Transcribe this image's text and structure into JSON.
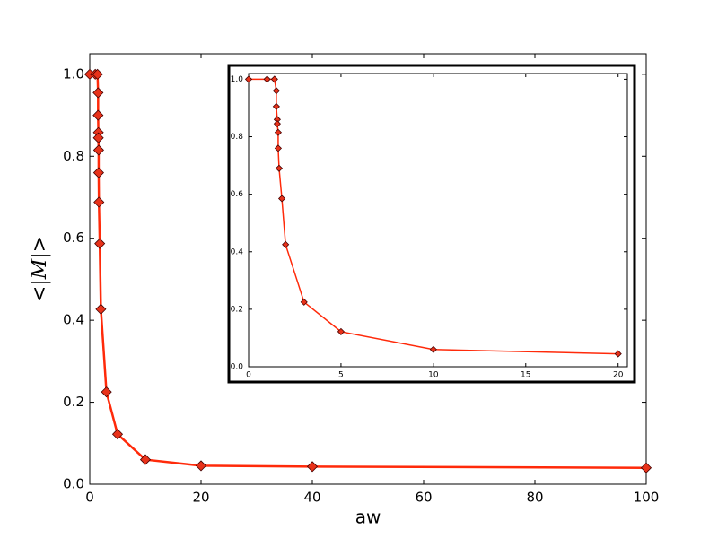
{
  "chart_data": [
    {
      "type": "line",
      "x_label": "aw",
      "y_label": "<|M|>",
      "x": [
        0,
        1,
        1.4,
        1.5,
        1.5,
        1.55,
        1.55,
        1.6,
        1.6,
        1.65,
        1.8,
        2,
        3,
        5,
        10,
        20,
        40,
        100
      ],
      "series": [
        {
          "color": "#ff2a0a",
          "marker_color": "#e8321a",
          "values": [
            1.0,
            1.0,
            1.0,
            0.955,
            0.9,
            0.858,
            0.845,
            0.815,
            0.76,
            0.688,
            0.587,
            0.427,
            0.225,
            0.122,
            0.06,
            0.045,
            0.043,
            0.04
          ]
        }
      ],
      "xlim": [
        0,
        100
      ],
      "ylim": [
        0,
        1.05
      ],
      "xticks": [
        0,
        20,
        40,
        60,
        80,
        100
      ],
      "yticks": [
        {
          "value": 0,
          "label": "0.0"
        },
        {
          "value": 0.2,
          "label": "0.2"
        },
        {
          "value": 0.4,
          "label": "0.4"
        },
        {
          "value": 0.6,
          "label": "0.6"
        },
        {
          "value": 0.8,
          "label": "0.8"
        },
        {
          "value": 1,
          "label": "1.0"
        }
      ]
    },
    {
      "type": "line",
      "x": [
        0,
        1,
        1.4,
        1.5,
        1.5,
        1.55,
        1.55,
        1.6,
        1.6,
        1.65,
        1.8,
        2,
        3,
        5,
        10,
        20
      ],
      "series": [
        {
          "color": "#ff2a0a",
          "marker_color": "#e8321a",
          "values": [
            1.0,
            1.0,
            1.0,
            0.96,
            0.905,
            0.86,
            0.845,
            0.815,
            0.76,
            0.69,
            0.585,
            0.425,
            0.225,
            0.122,
            0.06,
            0.045
          ]
        }
      ],
      "xlim": [
        0,
        20.5
      ],
      "ylim": [
        0,
        1.02
      ],
      "xticks": [
        0,
        5,
        10,
        15,
        20
      ],
      "yticks": [
        {
          "value": 0,
          "label": "0.0"
        },
        {
          "value": 0.2,
          "label": "0.2"
        },
        {
          "value": 0.4,
          "label": "0.4"
        },
        {
          "value": 0.6,
          "label": "0.6"
        },
        {
          "value": 0.8,
          "label": "0.8"
        },
        {
          "value": 1,
          "label": "1.0"
        }
      ]
    }
  ]
}
